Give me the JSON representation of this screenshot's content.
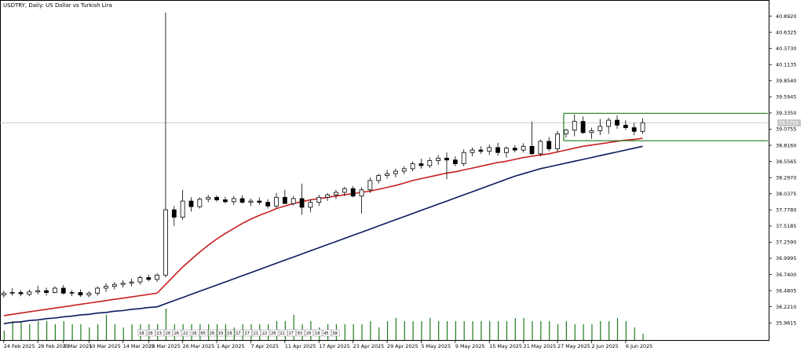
{
  "window": {
    "title": "USDTRY, Daily:  US Dollar vs Turkish Lira"
  },
  "colors": {
    "background": "#ffffff",
    "frame": "#000000",
    "candle": "#000000",
    "ema_fast": "#c8201e",
    "ema_slow": "#0b1a5c",
    "volume": "#1f7a1f",
    "channel": "#1f7a1f",
    "crosshair": "#c0c0c0",
    "price_tag_bg": "#c8c8c8"
  },
  "current_price_label": "39.1755",
  "chart_data": {
    "type": "candlestick",
    "title": "USDTRY, Daily:  US Dollar vs Turkish Lira",
    "ylim": [
      35.75,
      41.0
    ],
    "y_ticks": [
      "40.8920",
      "40.6325",
      "40.3730",
      "40.1135",
      "39.8540",
      "39.5945",
      "39.3350",
      "39.0755",
      "38.8160",
      "38.5565",
      "38.2970",
      "38.0375",
      "37.7780",
      "37.5185",
      "37.2590",
      "36.9995",
      "36.7400",
      "36.4805",
      "36.2210",
      "35.9615"
    ],
    "x_ticks": [
      "24 Feb 2025",
      "28 Feb 2025",
      "5 Mar 2025",
      "10 Mar 2025",
      "14 Mar 2025",
      "20 Mar 2025",
      "26 Mar 2025",
      "1 Apr 2025",
      "7 Apr 2025",
      "11 Apr 2025",
      "17 Apr 2025",
      "23 Apr 2025",
      "29 Apr 2025",
      "5 May 2025",
      "9 May 2025",
      "15 May 2025",
      "21 May 2025",
      "27 May 2025",
      "2 Jun 2025",
      "6 Jun 2025"
    ],
    "x_tick_days": [
      0,
      4,
      7,
      10,
      14,
      17,
      21,
      25,
      29,
      33,
      37,
      41,
      45,
      49,
      53,
      57,
      61,
      65,
      69,
      73
    ],
    "day_count": 76,
    "candles": [
      [
        36.41,
        36.48,
        36.37,
        36.44
      ],
      [
        36.44,
        36.52,
        36.4,
        36.45
      ],
      [
        36.45,
        36.49,
        36.39,
        36.43
      ],
      [
        36.42,
        36.5,
        36.39,
        36.46
      ],
      [
        36.46,
        36.56,
        36.42,
        36.48
      ],
      [
        36.48,
        36.53,
        36.4,
        36.45
      ],
      [
        36.45,
        36.55,
        36.44,
        36.52
      ],
      [
        36.52,
        36.57,
        36.42,
        36.44
      ],
      [
        36.44,
        36.49,
        36.39,
        36.45
      ],
      [
        36.45,
        36.5,
        36.38,
        36.41
      ],
      [
        36.41,
        36.47,
        36.37,
        36.44
      ],
      [
        36.44,
        36.55,
        36.4,
        36.52
      ],
      [
        36.52,
        36.6,
        36.46,
        36.55
      ],
      [
        36.55,
        36.62,
        36.5,
        36.58
      ],
      [
        36.58,
        36.65,
        36.53,
        36.6
      ],
      [
        36.6,
        36.67,
        36.55,
        36.62
      ],
      [
        36.62,
        36.72,
        36.58,
        36.69
      ],
      [
        36.69,
        36.74,
        36.63,
        36.66
      ],
      [
        36.66,
        36.76,
        36.62,
        36.73
      ],
      [
        36.73,
        40.95,
        36.69,
        37.78
      ],
      [
        37.78,
        37.84,
        37.52,
        37.66
      ],
      [
        37.66,
        38.1,
        37.62,
        37.92
      ],
      [
        37.92,
        37.98,
        37.75,
        37.83
      ],
      [
        37.83,
        37.98,
        37.8,
        37.95
      ],
      [
        37.95,
        38.02,
        37.9,
        37.98
      ],
      [
        37.98,
        38.01,
        37.91,
        37.94
      ],
      [
        37.94,
        37.99,
        37.88,
        37.91
      ],
      [
        37.91,
        38.0,
        37.86,
        37.96
      ],
      [
        37.96,
        38.01,
        37.88,
        37.9
      ],
      [
        37.9,
        37.96,
        37.84,
        37.92
      ],
      [
        37.92,
        37.98,
        37.86,
        37.9
      ],
      [
        37.9,
        37.95,
        37.8,
        37.84
      ],
      [
        37.84,
        38.05,
        37.8,
        37.98
      ],
      [
        37.98,
        38.1,
        37.9,
        37.88
      ],
      [
        37.88,
        38.0,
        37.85,
        37.96
      ],
      [
        37.96,
        38.2,
        37.7,
        37.82
      ],
      [
        37.82,
        37.95,
        37.74,
        37.9
      ],
      [
        37.9,
        38.02,
        37.84,
        37.98
      ],
      [
        37.98,
        38.05,
        37.92,
        38.02
      ],
      [
        38.02,
        38.1,
        37.95,
        38.06
      ],
      [
        38.06,
        38.15,
        38.0,
        38.12
      ],
      [
        38.12,
        38.16,
        37.98,
        38.0
      ],
      [
        38.0,
        38.14,
        37.72,
        38.1
      ],
      [
        38.1,
        38.3,
        38.05,
        38.25
      ],
      [
        38.25,
        38.36,
        38.2,
        38.33
      ],
      [
        38.33,
        38.42,
        38.28,
        38.36
      ],
      [
        38.36,
        38.44,
        38.3,
        38.4
      ],
      [
        38.4,
        38.48,
        38.35,
        38.44
      ],
      [
        38.44,
        38.56,
        38.4,
        38.52
      ],
      [
        38.52,
        38.6,
        38.44,
        38.49
      ],
      [
        38.49,
        38.62,
        38.45,
        38.57
      ],
      [
        38.57,
        38.66,
        38.5,
        38.61
      ],
      [
        38.61,
        38.7,
        38.27,
        38.58
      ],
      [
        38.58,
        38.64,
        38.48,
        38.52
      ],
      [
        38.52,
        38.75,
        38.48,
        38.7
      ],
      [
        38.7,
        38.78,
        38.64,
        38.74
      ],
      [
        38.74,
        38.8,
        38.68,
        38.72
      ],
      [
        38.72,
        38.83,
        38.66,
        38.78
      ],
      [
        38.78,
        38.86,
        38.65,
        38.7
      ],
      [
        38.7,
        38.8,
        38.62,
        38.77
      ],
      [
        38.77,
        38.82,
        38.7,
        38.74
      ],
      [
        38.74,
        38.85,
        38.7,
        38.8
      ],
      [
        38.8,
        39.2,
        38.66,
        38.68
      ],
      [
        38.68,
        38.91,
        38.64,
        38.88
      ],
      [
        38.88,
        38.95,
        38.72,
        38.76
      ],
      [
        38.76,
        39.05,
        38.7,
        39.0
      ],
      [
        39.0,
        39.08,
        38.94,
        39.06
      ],
      [
        39.06,
        39.31,
        38.96,
        39.2
      ],
      [
        39.2,
        39.28,
        39.0,
        39.02
      ],
      [
        39.02,
        39.1,
        38.92,
        39.05
      ],
      [
        39.05,
        39.24,
        38.98,
        39.12
      ],
      [
        39.12,
        39.26,
        39.0,
        39.22
      ],
      [
        39.22,
        39.3,
        39.08,
        39.14
      ],
      [
        39.14,
        39.22,
        39.06,
        39.1
      ],
      [
        39.1,
        39.18,
        38.98,
        39.04
      ],
      [
        39.04,
        39.25,
        39.0,
        39.18
      ]
    ],
    "ema_fast": [
      36.08,
      36.1,
      36.12,
      36.14,
      36.16,
      36.18,
      36.2,
      36.22,
      36.24,
      36.26,
      36.28,
      36.3,
      36.32,
      36.34,
      36.36,
      36.38,
      36.4,
      36.42,
      36.44,
      36.58,
      36.72,
      36.86,
      36.98,
      37.1,
      37.21,
      37.31,
      37.4,
      37.48,
      37.56,
      37.63,
      37.69,
      37.74,
      37.8,
      37.84,
      37.88,
      37.91,
      37.94,
      37.96,
      37.98,
      38.0,
      38.02,
      38.04,
      38.06,
      38.08,
      38.11,
      38.14,
      38.17,
      38.21,
      38.25,
      38.28,
      38.31,
      38.34,
      38.37,
      38.39,
      38.42,
      38.45,
      38.48,
      38.51,
      38.54,
      38.56,
      38.59,
      38.62,
      38.64,
      38.66,
      38.68,
      38.71,
      38.74,
      38.77,
      38.8,
      38.82,
      38.84,
      38.86,
      38.88,
      38.9,
      38.91,
      38.93
    ],
    "ema_slow": [
      35.95,
      35.97,
      35.98,
      36.0,
      36.01,
      36.03,
      36.04,
      36.06,
      36.07,
      36.09,
      36.1,
      36.12,
      36.13,
      36.15,
      36.16,
      36.18,
      36.19,
      36.21,
      36.22,
      36.27,
      36.32,
      36.37,
      36.42,
      36.47,
      36.52,
      36.57,
      36.62,
      36.67,
      36.72,
      36.77,
      36.82,
      36.87,
      36.92,
      36.97,
      37.02,
      37.07,
      37.12,
      37.17,
      37.22,
      37.27,
      37.32,
      37.37,
      37.42,
      37.47,
      37.52,
      37.57,
      37.62,
      37.67,
      37.72,
      37.77,
      37.82,
      37.87,
      37.92,
      37.97,
      38.02,
      38.07,
      38.12,
      38.17,
      38.22,
      38.27,
      38.32,
      38.36,
      38.4,
      38.44,
      38.47,
      38.5,
      38.53,
      38.56,
      38.59,
      38.62,
      38.65,
      38.68,
      38.71,
      38.74,
      38.77,
      38.8
    ],
    "volume": [
      3,
      6,
      6,
      5,
      6,
      6,
      5,
      6,
      5,
      5,
      4,
      5,
      8,
      5,
      4,
      5,
      5,
      5,
      5,
      10,
      5,
      5,
      5,
      5,
      5,
      5,
      5,
      4,
      5,
      5,
      5,
      5,
      6,
      6,
      8,
      5,
      6,
      4,
      5,
      5,
      5,
      5,
      5,
      6,
      4,
      6,
      7,
      6,
      6,
      6,
      7,
      6,
      6,
      6,
      6,
      6,
      6,
      6,
      6,
      6,
      7,
      7,
      6,
      6,
      6,
      5,
      6,
      5,
      5,
      5,
      6,
      6,
      7,
      6,
      4,
      2
    ],
    "channel": {
      "upper": 39.33,
      "lower": 38.89,
      "start_day": 66,
      "end_day": 76
    },
    "crosshair_price": 39.175,
    "volume_mini_labels": [
      "18",
      "20",
      "23",
      "20",
      "26",
      "22",
      "16",
      "05",
      "20",
      "19",
      "18",
      "17",
      "17",
      "21",
      "22",
      "20",
      "21",
      "17",
      "03",
      "20",
      "18",
      "45",
      "38"
    ],
    "volume_highlight_index": 12,
    "series": [
      {
        "values_key": "candles"
      },
      {
        "values_key": "ema_fast"
      },
      {
        "values_key": "ema_slow"
      },
      {
        "values_key": "volume"
      }
    ]
  }
}
